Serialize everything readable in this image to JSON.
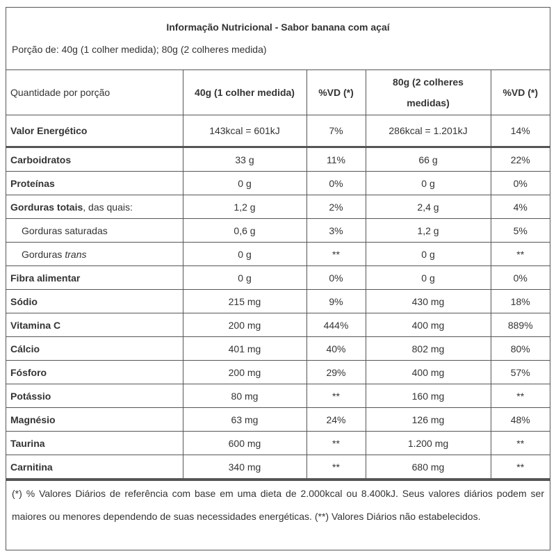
{
  "header": {
    "title": "Informação Nutricional - Sabor banana com açaí",
    "portion": "Porção de: 40g (1 colher medida); 80g (2 colheres medida)"
  },
  "table": {
    "columns": [
      "Quantidade por porção",
      "40g (1 colher medida)",
      "%VD (*)",
      "80g (2 colheres medidas)",
      "%VD (*)"
    ],
    "energy": {
      "label": "Valor Energético",
      "cells": [
        "143kcal = 601kJ",
        "7%",
        "286kcal = 1.201kJ",
        "14%"
      ]
    },
    "rows": [
      {
        "label": "Carboidratos",
        "cells": [
          "33 g",
          "11%",
          "66 g",
          "22%"
        ]
      },
      {
        "label": "Proteínas",
        "cells": [
          "0 g",
          "0%",
          "0 g",
          "0%"
        ]
      },
      {
        "label": "Gorduras totais",
        "label_rest": ", das quais:",
        "cells": [
          "1,2 g",
          "2%",
          "2,4 g",
          "4%"
        ]
      },
      {
        "label": "Gorduras saturadas",
        "indent": true,
        "cells": [
          "0,6 g",
          "3%",
          "1,2 g",
          "5%"
        ]
      },
      {
        "label": "Gorduras",
        "label_italic": "trans",
        "indent": true,
        "cells": [
          "0 g",
          "**",
          "0 g",
          "**"
        ]
      },
      {
        "label": "Fibra alimentar",
        "cells": [
          "0 g",
          "0%",
          "0 g",
          "0%"
        ]
      },
      {
        "label": "Sódio",
        "cells": [
          "215 mg",
          "9%",
          "430 mg",
          "18%"
        ]
      },
      {
        "label": "Vitamina C",
        "cells": [
          "200 mg",
          "444%",
          "400 mg",
          "889%"
        ]
      },
      {
        "label": "Cálcio",
        "cells": [
          "401 mg",
          "40%",
          "802 mg",
          "80%"
        ]
      },
      {
        "label": "Fósforo",
        "cells": [
          "200 mg",
          "29%",
          "400 mg",
          "57%"
        ]
      },
      {
        "label": "Potássio",
        "cells": [
          "80 mg",
          "**",
          "160 mg",
          "**"
        ]
      },
      {
        "label": "Magnésio",
        "cells": [
          "63 mg",
          "24%",
          "126 mg",
          "48%"
        ]
      },
      {
        "label": "Taurina",
        "cells": [
          "600 mg",
          "**",
          "1.200 mg",
          "**"
        ]
      },
      {
        "label": "Carnitina",
        "cells": [
          "340 mg",
          "**",
          "680 mg",
          "**"
        ]
      }
    ]
  },
  "footnote": "(*) % Valores Diários de referência com base em uma dieta de 2.000kcal ou 8.400kJ. Seus valores diários podem ser maiores ou menores dependendo de suas necessidades energéticas. (**) Valores Diários não estabelecidos."
}
